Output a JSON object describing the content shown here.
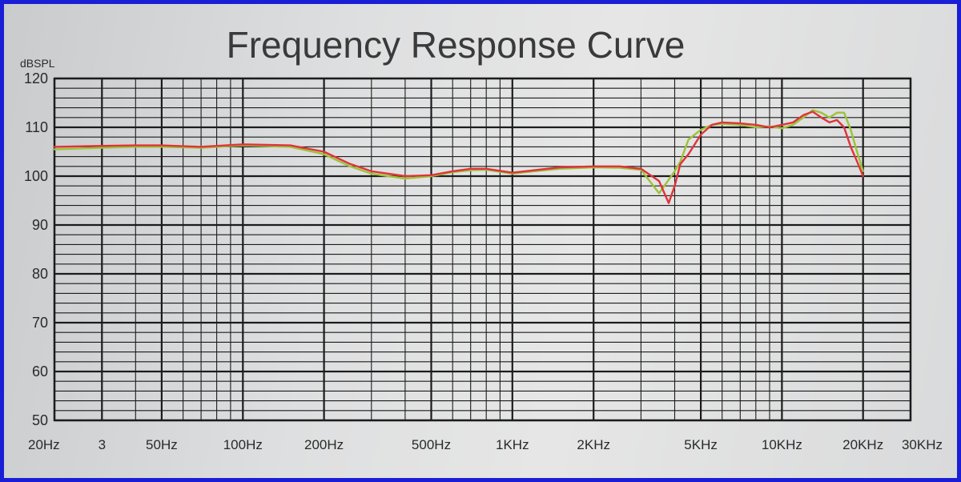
{
  "chart_data": {
    "type": "line",
    "title": "Frequency Response Curve",
    "ylabel": "dBSPL",
    "xlabel": "",
    "xscale": "log",
    "xlim": [
      20,
      30000
    ],
    "ylim": [
      50,
      120
    ],
    "grid": true,
    "y_ticks": [
      {
        "value": 120,
        "label": "120"
      },
      {
        "value": 110,
        "label": "110"
      },
      {
        "value": 100,
        "label": "100"
      },
      {
        "value": 90,
        "label": "90"
      },
      {
        "value": 80,
        "label": "80"
      },
      {
        "value": 70,
        "label": "70"
      },
      {
        "value": 60,
        "label": "60"
      },
      {
        "value": 50,
        "label": "50"
      }
    ],
    "x_ticks": [
      {
        "value": 20,
        "label": "20Hz"
      },
      {
        "value": 30,
        "label": "3"
      },
      {
        "value": 50,
        "label": "50Hz"
      },
      {
        "value": 100,
        "label": "100Hz"
      },
      {
        "value": 200,
        "label": "200Hz"
      },
      {
        "value": 500,
        "label": "500Hz"
      },
      {
        "value": 1000,
        "label": "1KHz"
      },
      {
        "value": 2000,
        "label": "2KHz"
      },
      {
        "value": 5000,
        "label": "5KHz"
      },
      {
        "value": 10000,
        "label": "10KHz"
      },
      {
        "value": 20000,
        "label": "20KHz"
      },
      {
        "value": 30000,
        "label": "30KHz"
      }
    ],
    "series": [
      {
        "color": "#9cc33a",
        "x": [
          20,
          30,
          40,
          50,
          70,
          100,
          150,
          200,
          250,
          300,
          400,
          500,
          600,
          700,
          800,
          1000,
          1200,
          1500,
          2000,
          2500,
          3000,
          3500,
          4000,
          4200,
          4500,
          5000,
          5500,
          6000,
          7000,
          8000,
          9000,
          10000,
          11000,
          12000,
          13000,
          14000,
          15000,
          16000,
          17000,
          18000,
          19000,
          20000
        ],
        "values": [
          105.5,
          105.8,
          106,
          106,
          105.8,
          106.3,
          106,
          104.5,
          102,
          100.5,
          99.5,
          100,
          100.8,
          101.2,
          101.3,
          100.5,
          101,
          101.5,
          101.8,
          101.7,
          101.3,
          96.5,
          101,
          103,
          107.5,
          109.5,
          110.5,
          110.7,
          110.5,
          110,
          110.2,
          109.8,
          110.5,
          112,
          113.5,
          113,
          112,
          113,
          113,
          109.5,
          105,
          101
        ]
      },
      {
        "color": "#e0333a",
        "x": [
          20,
          30,
          40,
          50,
          70,
          100,
          150,
          200,
          250,
          300,
          400,
          500,
          600,
          700,
          800,
          1000,
          1200,
          1500,
          2000,
          2500,
          3000,
          3500,
          3800,
          4000,
          4200,
          4500,
          5000,
          5500,
          6000,
          7000,
          8000,
          9000,
          10000,
          11000,
          12000,
          13000,
          14000,
          15000,
          16000,
          17000,
          18000,
          19000,
          20000
        ],
        "values": [
          106,
          106.2,
          106.3,
          106.3,
          106,
          106.5,
          106.3,
          105,
          102.5,
          101,
          100,
          100.2,
          101,
          101.5,
          101.5,
          100.7,
          101.2,
          101.8,
          102,
          102,
          101.5,
          99,
          94.5,
          98,
          102.5,
          104.5,
          108.5,
          110.5,
          111,
          110.8,
          110.5,
          110,
          110.5,
          111,
          112.5,
          113.2,
          112,
          111,
          111.5,
          110,
          106,
          103,
          100
        ]
      }
    ]
  }
}
